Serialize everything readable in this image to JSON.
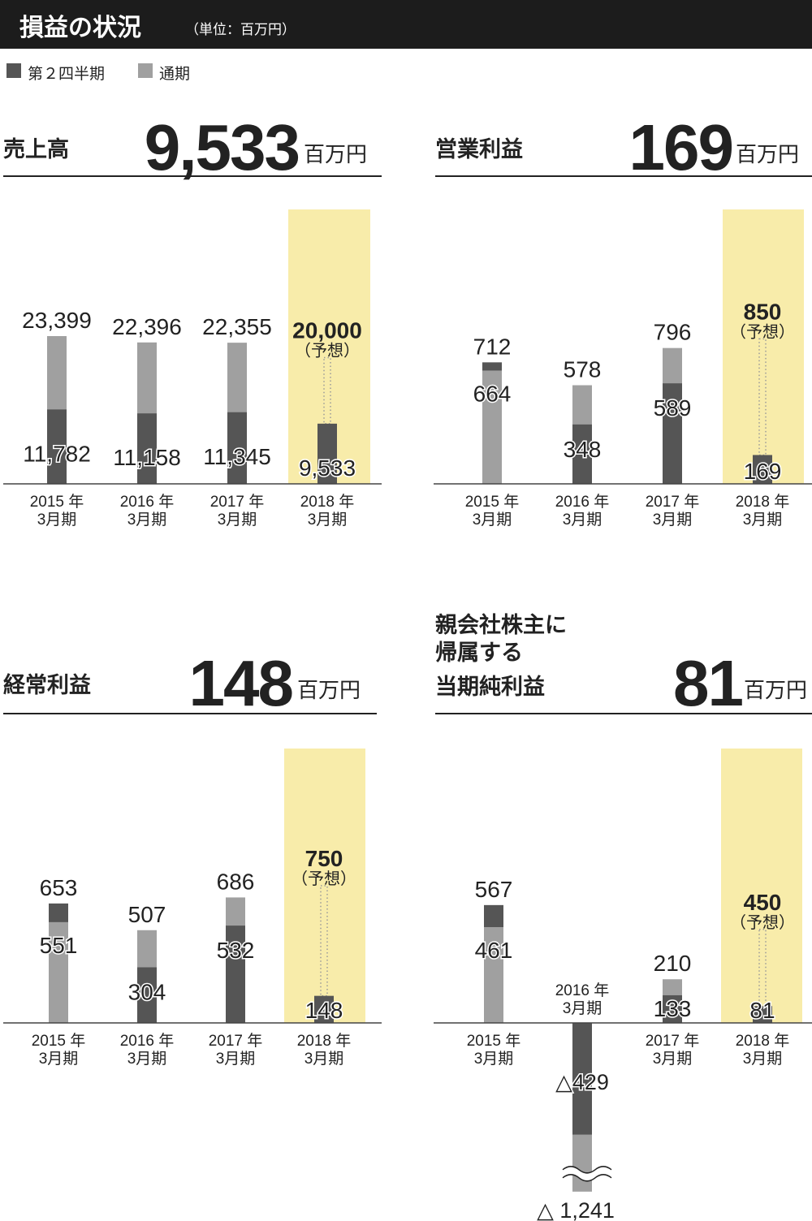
{
  "header": {
    "title": "損益の状況",
    "unit": "（単位：百万円）"
  },
  "legend": [
    {
      "label": "第２四半期",
      "color": "#555555"
    },
    {
      "label": "通期",
      "color": "#a0a0a0"
    }
  ],
  "colors": {
    "q2": "#555555",
    "full": "#a0a0a0",
    "highlight": "#f8ecaa"
  },
  "chart_data": [
    {
      "type": "bar",
      "title": "売上高",
      "headline_value": "9,533",
      "headline_unit": "百万円",
      "categories": [
        [
          "2015 年",
          "3月期"
        ],
        [
          "2016 年",
          "3月期"
        ],
        [
          "2017 年",
          "3月期"
        ],
        [
          "2018 年",
          "3月期"
        ]
      ],
      "series": [
        {
          "name": "第２四半期",
          "values": [
            11782,
            11158,
            11345,
            9533
          ],
          "labels": [
            "11,782",
            "11,158",
            "11,345",
            "9,533"
          ]
        },
        {
          "name": "通期",
          "values": [
            23399,
            22396,
            22355,
            20000
          ],
          "labels": [
            "23,399",
            "22,396",
            "22,355",
            "20,000"
          ]
        }
      ],
      "forecast_note": "（予想）",
      "ylim": [
        0,
        27000
      ]
    },
    {
      "type": "bar",
      "title": "営業利益",
      "headline_value": "169",
      "headline_unit": "百万円",
      "categories": [
        [
          "2015 年",
          "3月期"
        ],
        [
          "2016 年",
          "3月期"
        ],
        [
          "2017 年",
          "3月期"
        ],
        [
          "2018 年",
          "3月期"
        ]
      ],
      "series": [
        {
          "name": "第２四半期",
          "values": [
            712,
            348,
            589,
            169
          ],
          "labels": [
            "712",
            "348",
            "589",
            "169"
          ]
        },
        {
          "name": "通期",
          "values": [
            664,
            578,
            796,
            850
          ],
          "labels": [
            "664",
            "578",
            "796",
            "850"
          ]
        }
      ],
      "forecast_note": "（予想）",
      "ylim": [
        0,
        1400
      ]
    },
    {
      "type": "bar",
      "title": "経常利益",
      "headline_value": "148",
      "headline_unit": "百万円",
      "categories": [
        [
          "2015 年",
          "3月期"
        ],
        [
          "2016 年",
          "3月期"
        ],
        [
          "2017 年",
          "3月期"
        ],
        [
          "2018 年",
          "3月期"
        ]
      ],
      "series": [
        {
          "name": "第２四半期",
          "values": [
            653,
            304,
            532,
            148
          ],
          "labels": [
            "653",
            "304",
            "532",
            "148"
          ]
        },
        {
          "name": "通期",
          "values": [
            551,
            507,
            686,
            750
          ],
          "labels": [
            "551",
            "507",
            "686",
            "750"
          ]
        }
      ],
      "forecast_note": "（予想）",
      "ylim": [
        0,
        1260
      ]
    },
    {
      "type": "bar",
      "title": [
        "親会社株主に",
        "帰属する",
        "当期純利益"
      ],
      "headline_value": "81",
      "headline_unit": "百万円",
      "categories": [
        [
          "2015 年",
          "3月期"
        ],
        [
          "2016 年",
          "3月期"
        ],
        [
          "2017 年",
          "3月期"
        ],
        [
          "2018 年",
          "3月期"
        ]
      ],
      "series": [
        {
          "name": "第２四半期",
          "values": [
            567,
            -429,
            133,
            81
          ],
          "labels": [
            "567",
            "△429",
            "133",
            "81"
          ]
        },
        {
          "name": "通期",
          "values": [
            461,
            -1241,
            210,
            450
          ],
          "labels": [
            "461",
            "△ 1,241",
            "210",
            "450"
          ]
        }
      ],
      "forecast_note": "（予想）",
      "ylim": [
        -1241,
        1200
      ]
    }
  ]
}
